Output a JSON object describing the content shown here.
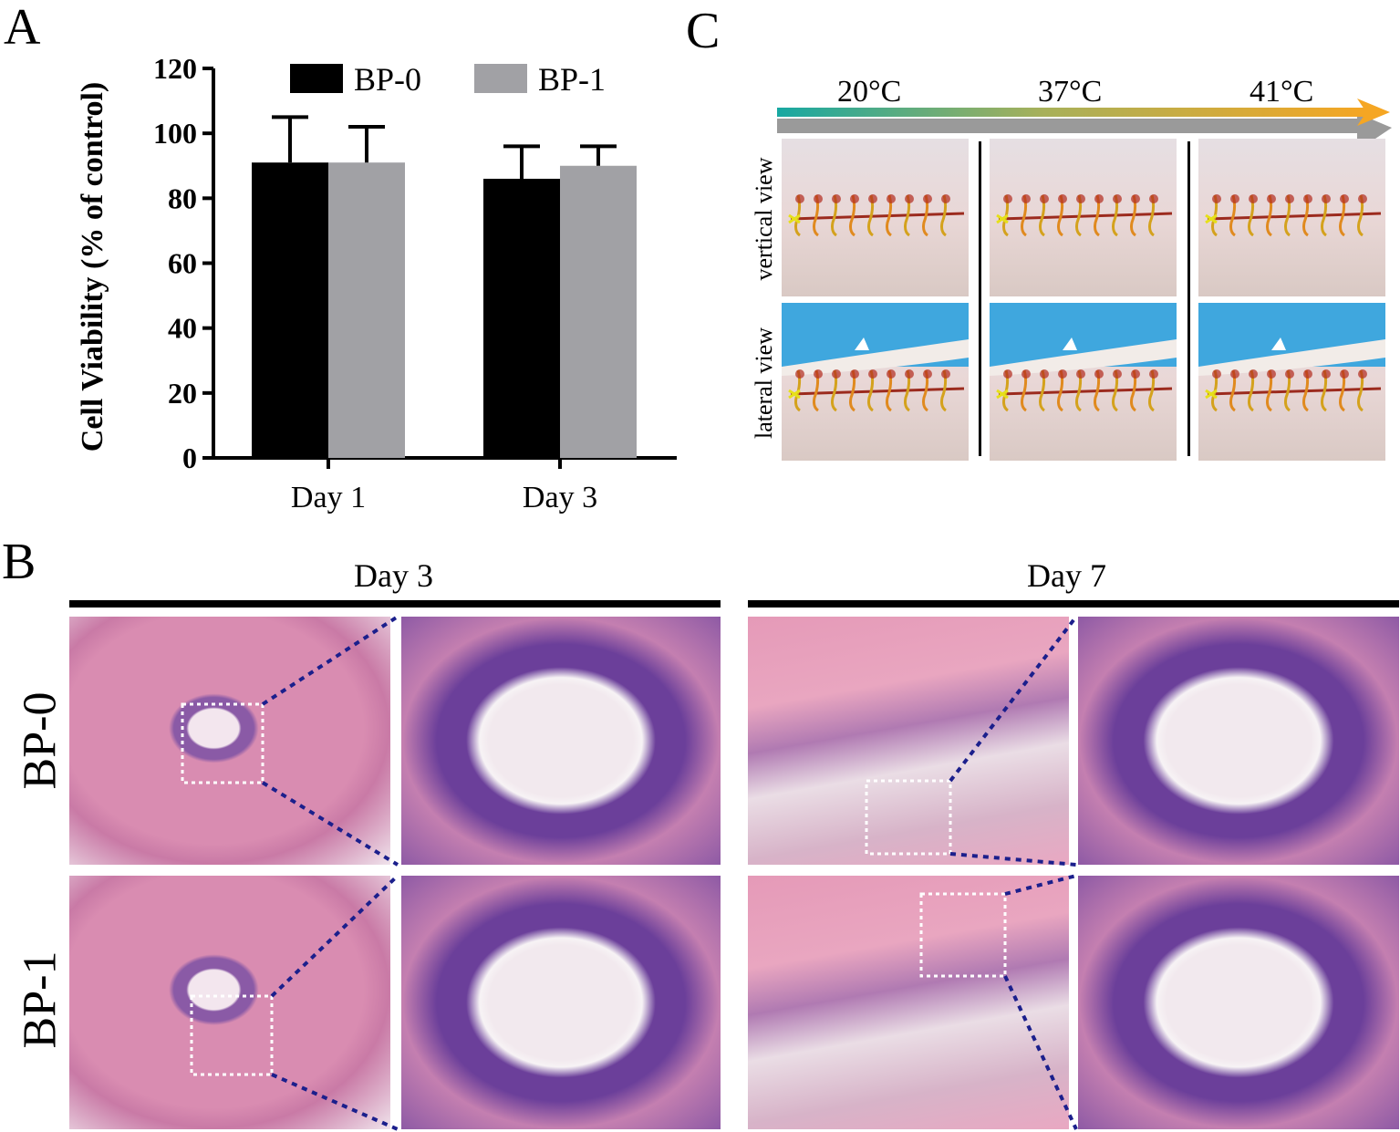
{
  "panels": {
    "a_letter": "A",
    "b_letter": "B",
    "c_letter": "C"
  },
  "chart_data": {
    "type": "bar",
    "categories": [
      "Day 1",
      "Day 3"
    ],
    "series": [
      {
        "name": "BP-0",
        "values": [
          91,
          86
        ],
        "errors": [
          14,
          10
        ],
        "color": "#000000"
      },
      {
        "name": "BP-1",
        "values": [
          91,
          90
        ],
        "errors": [
          11,
          6
        ],
        "color": "#a1a1a5"
      }
    ],
    "ylabel": "Cell Viability (% of control)",
    "xlabel": "",
    "ylim": [
      0,
      120
    ],
    "yticks": [
      0,
      20,
      40,
      60,
      80,
      100,
      120
    ],
    "legend_position": "top",
    "grid": false
  },
  "panel_c": {
    "temperatures": [
      "20°C",
      "37°C",
      "41°C"
    ],
    "row_labels": [
      "vertical view",
      "lateral view"
    ],
    "gradient_colors": [
      "#1aa9a0",
      "#f5a623"
    ]
  },
  "panel_b": {
    "column_titles": [
      "Day 3",
      "Day 7"
    ],
    "row_labels": [
      "BP-0",
      "BP-1"
    ]
  }
}
